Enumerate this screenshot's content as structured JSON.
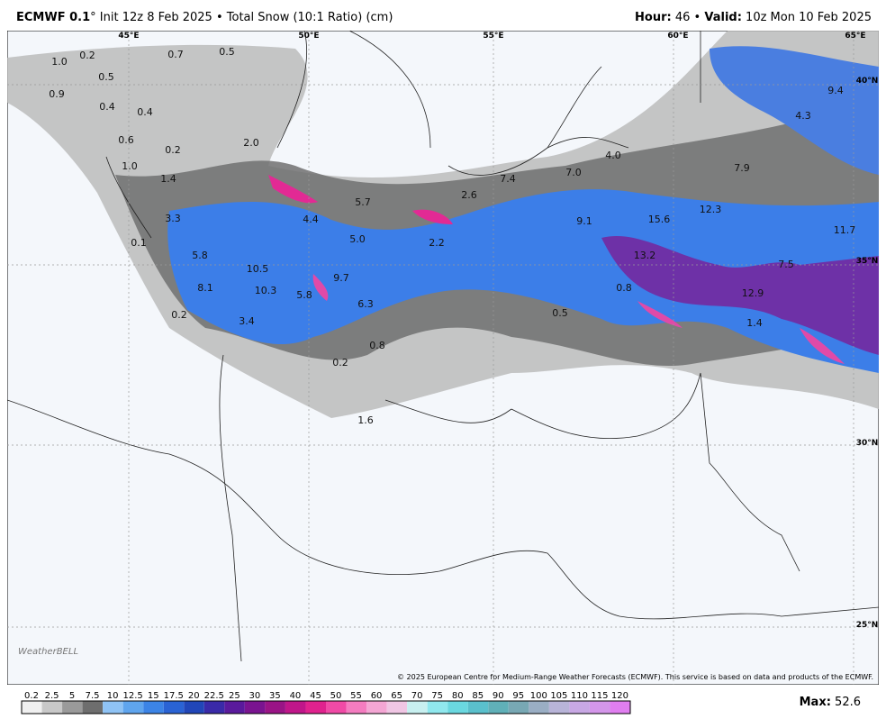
{
  "header": {
    "model": "ECMWF 0.1",
    "degree": "°",
    "init": "Init 12z 8 Feb 2025 • Total Snow (10:1 Ratio) (cm)",
    "hour_label": "Hour:",
    "hour": "46 •",
    "valid_label": "Valid:",
    "valid": "10z Mon 10 Feb 2025"
  },
  "map": {
    "graticule": [
      "45°E",
      "50°E",
      "55°E",
      "60°E",
      "65°E",
      "40°N",
      "35°N",
      "30°N",
      "25°N"
    ],
    "labels": [
      "1.0",
      "0.2",
      "0.7",
      "0.5",
      "0.5",
      "0.9",
      "0.4",
      "0.4",
      "0.6",
      "0.2",
      "2.0",
      "1.0",
      "1.4",
      "3.3",
      "0.1",
      "5.8",
      "10.5",
      "8.1",
      "10.3",
      "0.2",
      "3.4",
      "5.8",
      "9.7",
      "6.3",
      "0.8",
      "0.2",
      "1.6",
      "4.4",
      "5.0",
      "2.2",
      "5.7",
      "2.6",
      "7.4",
      "7.0",
      "4.0",
      "7.9",
      "9.1",
      "15.6",
      "12.3",
      "13.2",
      "0.8",
      "0.5",
      "9.4",
      "4.3",
      "11.7",
      "7.5",
      "12.9",
      "1.4"
    ],
    "copyright": "© 2025 European Centre for Medium-Range Weather Forecasts (ECMWF). This service is based on data and products of the ECMWF.",
    "logo": "WeatherBELL"
  },
  "colorbar": {
    "labels": [
      "0.2",
      "2.5",
      "5",
      "7.5",
      "10",
      "12.5",
      "15",
      "17.5",
      "20",
      "22.5",
      "25",
      "30",
      "35",
      "40",
      "45",
      "50",
      "55",
      "60",
      "65",
      "70",
      "75",
      "80",
      "85",
      "90",
      "95",
      "100",
      "105",
      "110",
      "115",
      "120"
    ],
    "colors": [
      "#f0f0f0",
      "#c8c8c8",
      "#9a9a9a",
      "#6e6e6e",
      "#8fc3f5",
      "#5fa5ee",
      "#3c84e6",
      "#2a63d4",
      "#2146b8",
      "#3a2aa8",
      "#5a1a9c",
      "#7a1490",
      "#9a1486",
      "#c0168a",
      "#e0228e",
      "#f04aa6",
      "#f47cc0",
      "#f4a6d4",
      "#f0c6e4",
      "#c8f0f0",
      "#90e8ee",
      "#6ad8e0",
      "#5ac0cc",
      "#60b0b8",
      "#78a8b4",
      "#9aaec4",
      "#b8b4d8",
      "#c8a8e4",
      "#d496ea",
      "#e07ef0"
    ]
  },
  "footer": {
    "max_label": "Max:",
    "max": "52.6"
  }
}
